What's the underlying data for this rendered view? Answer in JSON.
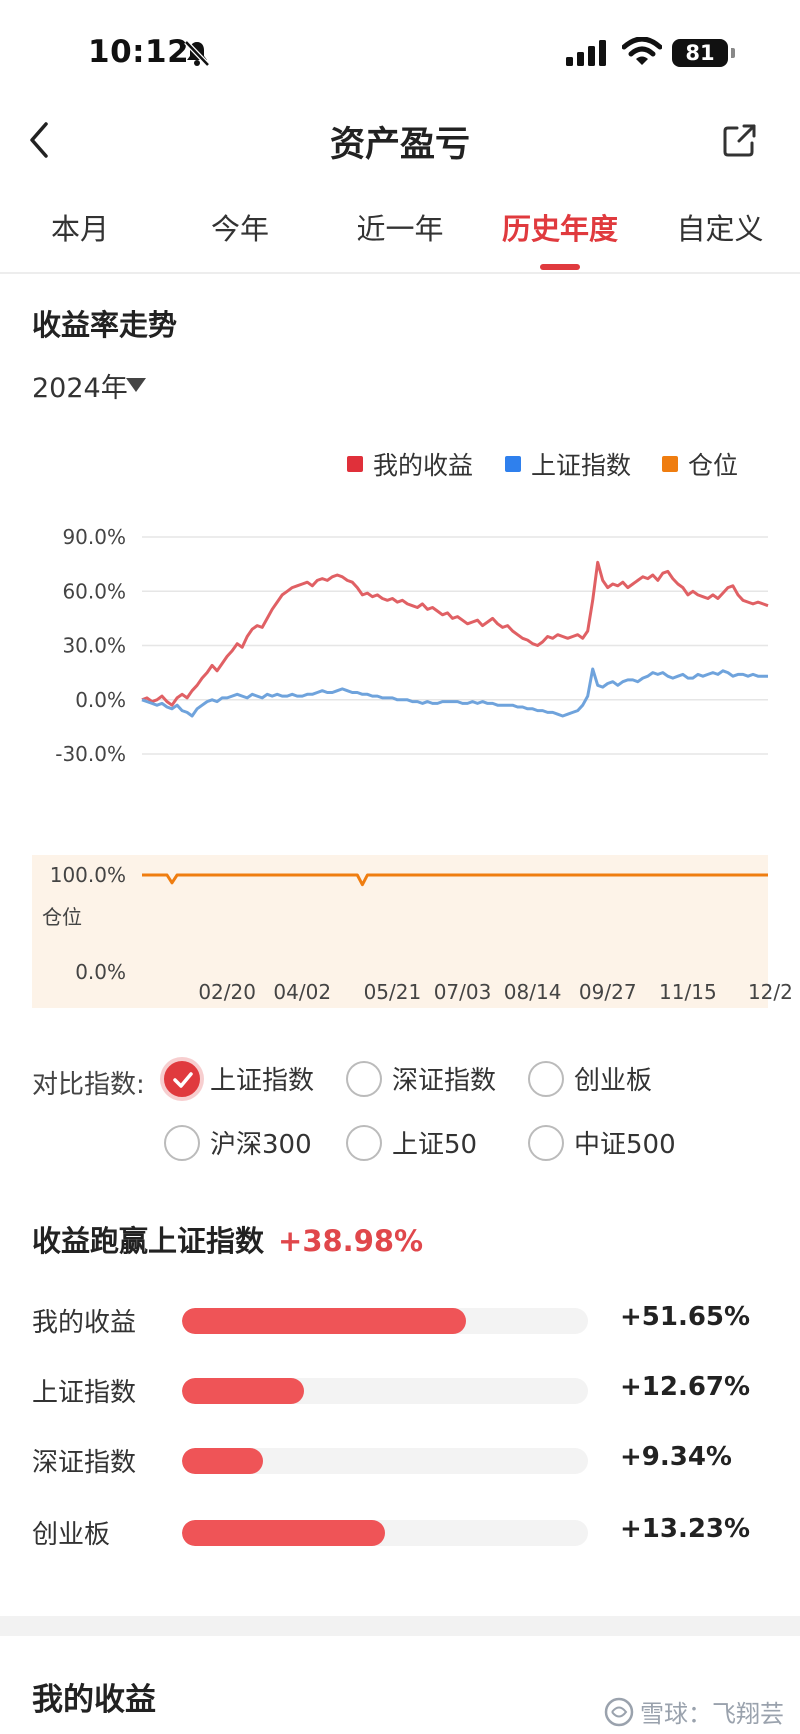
{
  "status_bar": {
    "time": "10:12",
    "battery": "81"
  },
  "nav": {
    "title": "资产盈亏"
  },
  "tabs": [
    {
      "label": "本月",
      "active": false
    },
    {
      "label": "今年",
      "active": false
    },
    {
      "label": "近一年",
      "active": false
    },
    {
      "label": "历史年度",
      "active": true
    },
    {
      "label": "自定义",
      "active": false
    }
  ],
  "trend": {
    "title": "收益率走势",
    "year": "2024年",
    "legend": [
      {
        "label": "我的收益",
        "color": "#e0303a"
      },
      {
        "label": "上证指数",
        "color": "#2f80ed"
      },
      {
        "label": "仓位",
        "color": "#ef7d10"
      }
    ]
  },
  "chart_data": {
    "type": "line",
    "y_ticks": [
      "90.0%",
      "60.0%",
      "30.0%",
      "0.0%",
      "-30.0%"
    ],
    "ylim": [
      -30,
      90
    ],
    "position_ticks": [
      "100.0%",
      "0.0%"
    ],
    "position_label": "仓位",
    "x_ticks": [
      "02/20",
      "04/02",
      "05/21",
      "07/03",
      "08/14",
      "09/27",
      "11/15",
      "12/2"
    ],
    "x_tick_index": [
      17,
      32,
      50,
      64,
      78,
      93,
      109,
      121
    ],
    "series": [
      {
        "name": "我的收益",
        "color": "#e06064",
        "values": [
          0,
          1,
          -1,
          0,
          2,
          -1,
          -3,
          1,
          3,
          1,
          5,
          8,
          12,
          15,
          19,
          16,
          20,
          24,
          27,
          31,
          29,
          35,
          39,
          41,
          40,
          45,
          50,
          54,
          58,
          60,
          62,
          63,
          64,
          65,
          63,
          66,
          67,
          66,
          68,
          69,
          68,
          66,
          65,
          62,
          58,
          59,
          57,
          58,
          56,
          55,
          56,
          54,
          55,
          53,
          52,
          51,
          53,
          50,
          51,
          49,
          47,
          48,
          45,
          46,
          44,
          42,
          43,
          44,
          41,
          43,
          45,
          42,
          40,
          41,
          38,
          36,
          34,
          33,
          31,
          30,
          32,
          35,
          34,
          36,
          35,
          34,
          35,
          36,
          34,
          38,
          55,
          76,
          66,
          62,
          64,
          63,
          65,
          62,
          64,
          66,
          68,
          67,
          69,
          66,
          70,
          71,
          67,
          64,
          62,
          58,
          60,
          58,
          57,
          56,
          58,
          56,
          59,
          62,
          63,
          58,
          55,
          54,
          53,
          54,
          53,
          52
        ]
      },
      {
        "name": "上证指数",
        "color": "#6fa3dc",
        "values": [
          0,
          -1,
          -2,
          -3,
          -2,
          -4,
          -5,
          -3,
          -6,
          -7,
          -9,
          -5,
          -3,
          -1,
          0,
          -1,
          1,
          1,
          2,
          3,
          2,
          1,
          3,
          2,
          1,
          3,
          2,
          3,
          2,
          2,
          3,
          2,
          2,
          3,
          3,
          4,
          5,
          4,
          4,
          5,
          6,
          5,
          4,
          4,
          3,
          3,
          2,
          2,
          1,
          1,
          1,
          0,
          0,
          0,
          -1,
          -1,
          -2,
          -1,
          -2,
          -2,
          -1,
          -1,
          -1,
          -1,
          -2,
          -2,
          -1,
          -2,
          -1,
          -2,
          -2,
          -3,
          -3,
          -3,
          -3,
          -4,
          -4,
          -5,
          -5,
          -6,
          -6,
          -7,
          -7,
          -8,
          -9,
          -8,
          -7,
          -6,
          -3,
          2,
          17,
          8,
          7,
          9,
          10,
          8,
          10,
          11,
          11,
          10,
          12,
          13,
          15,
          14,
          15,
          13,
          12,
          13,
          14,
          12,
          12,
          14,
          13,
          14,
          15,
          14,
          16,
          15,
          13,
          14,
          14,
          13,
          14,
          13,
          13,
          13
        ]
      },
      {
        "name": "仓位",
        "color": "#ef7d10",
        "values": [
          100,
          100,
          100,
          100,
          100,
          100,
          92,
          100,
          100,
          100,
          100,
          100,
          100,
          100,
          100,
          100,
          100,
          100,
          100,
          100,
          100,
          100,
          100,
          100,
          100,
          100,
          100,
          100,
          100,
          100,
          100,
          100,
          100,
          100,
          100,
          100,
          100,
          100,
          100,
          100,
          100,
          100,
          100,
          100,
          90,
          100,
          100,
          100,
          100,
          100,
          100,
          100,
          100,
          100,
          100,
          100,
          100,
          100,
          100,
          100,
          100,
          100,
          100,
          100,
          100,
          100,
          100,
          100,
          100,
          100,
          100,
          100,
          100,
          100,
          100,
          100,
          100,
          100,
          100,
          100,
          100,
          100,
          100,
          100,
          100,
          100,
          100,
          100,
          100,
          100,
          100,
          100,
          100,
          100,
          100,
          100,
          100,
          100,
          100,
          100,
          100,
          100,
          100,
          100,
          100,
          100,
          100,
          100,
          100,
          100,
          100,
          100,
          100,
          100,
          100,
          100,
          100,
          100,
          100,
          100,
          100,
          100,
          100,
          100,
          100,
          100
        ]
      }
    ]
  },
  "compare": {
    "label": "对比指数:",
    "options": [
      {
        "label": "上证指数",
        "checked": true
      },
      {
        "label": "深证指数",
        "checked": false
      },
      {
        "label": "创业板",
        "checked": false
      },
      {
        "label": "沪深300",
        "checked": false
      },
      {
        "label": "上证50",
        "checked": false
      },
      {
        "label": "中证500",
        "checked": false
      }
    ]
  },
  "outperform": {
    "label": "收益跑赢上证指数",
    "value": "+38.98%",
    "bars": [
      {
        "label": "我的收益",
        "value": "+51.65%",
        "fill": 0.7
      },
      {
        "label": "上证指数",
        "value": "+12.67%",
        "fill": 0.3
      },
      {
        "label": "深证指数",
        "value": "+9.34%",
        "fill": 0.2
      },
      {
        "label": "创业板",
        "value": "+13.23%",
        "fill": 0.5
      }
    ]
  },
  "my_profit": {
    "title": "我的收益"
  },
  "watermark": {
    "text": "雪球：飞翔芸"
  }
}
